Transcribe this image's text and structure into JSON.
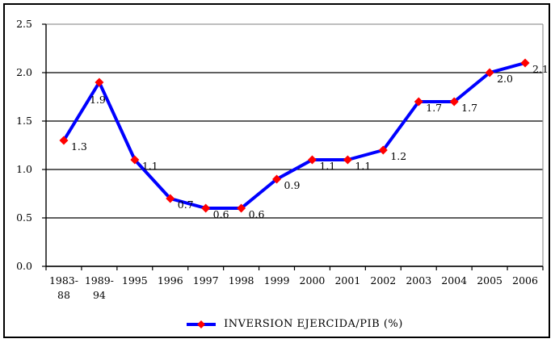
{
  "chart_data": {
    "type": "line",
    "title": "",
    "categories": [
      "1983-88",
      "1989-94",
      "1995",
      "1996",
      "1997",
      "1998",
      "1999",
      "2000",
      "2001",
      "2002",
      "2003",
      "2004",
      "2005",
      "2006"
    ],
    "series": [
      {
        "name": "INVERSION EJERCIDA/PIB (%)",
        "values": [
          1.3,
          1.9,
          1.1,
          0.7,
          0.6,
          0.6,
          0.9,
          1.1,
          1.1,
          1.2,
          1.7,
          1.7,
          2.0,
          2.1
        ]
      }
    ],
    "data_labels": [
      "1.3",
      "1.9",
      "1.1",
      "0.7",
      "0.6",
      "0.6",
      "0.9",
      "1.1",
      "1.1",
      "1.2",
      "1.7",
      "1.7",
      "2.0",
      "2.1"
    ],
    "label_positions": [
      "right",
      "below",
      "right",
      "right",
      "right",
      "right",
      "right",
      "right",
      "right",
      "right",
      "right",
      "right",
      "right",
      "right"
    ],
    "xlabel": "",
    "ylabel": "",
    "ylim": [
      0.0,
      2.5
    ],
    "yticks": [
      "0.0",
      "0.5",
      "1.0",
      "1.5",
      "2.0",
      "2.5"
    ],
    "grid": true,
    "legend_position": "bottom",
    "legend": "INVERSION EJERCIDA/PIB (%)",
    "colors": {
      "line": "#0000ff",
      "marker": "#ff0000",
      "grid": "#000000",
      "plot_border": "#969696",
      "axis": "#000000",
      "text": "#000000",
      "frame": "#000000",
      "background": "#ffffff"
    }
  }
}
